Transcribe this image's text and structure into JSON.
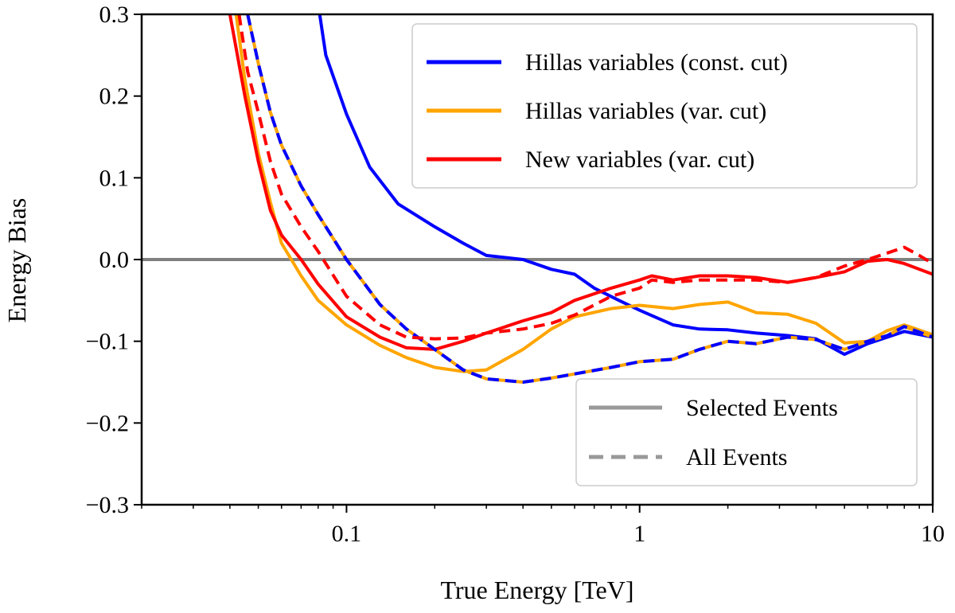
{
  "chart_data": {
    "type": "line",
    "xlabel": "True Energy [TeV]",
    "ylabel": "Energy Bias",
    "xscale": "log",
    "xlim": [
      0.02,
      10
    ],
    "ylim": [
      -0.3,
      0.3
    ],
    "xticks": [
      {
        "value": 0.1,
        "label": "0.1"
      },
      {
        "value": 1,
        "label": "1"
      },
      {
        "value": 10,
        "label": "10"
      }
    ],
    "yticks": [
      {
        "value": 0.3,
        "label": "0.3"
      },
      {
        "value": 0.2,
        "label": "0.2"
      },
      {
        "value": 0.1,
        "label": "0.1"
      },
      {
        "value": 0.0,
        "label": "0.0"
      },
      {
        "value": -0.1,
        "label": "−0.1"
      },
      {
        "value": -0.2,
        "label": "−0.2"
      },
      {
        "value": -0.3,
        "label": "−0.3"
      }
    ],
    "grid": false,
    "reference_line": {
      "y": 0.0,
      "color": "#808080"
    },
    "legend_series": {
      "position": "top-right",
      "entries": [
        {
          "label": "Hillas variables (const. cut)",
          "color": "#0000ff"
        },
        {
          "label": "Hillas variables (var. cut)",
          "color": "#ffa500"
        },
        {
          "label": "New variables (var. cut)",
          "color": "#ff0000"
        }
      ]
    },
    "legend_style": {
      "position": "lower-right",
      "entries": [
        {
          "label": "Selected Events",
          "linestyle": "solid",
          "color": "#999999"
        },
        {
          "label": "All Events",
          "linestyle": "dashed",
          "color": "#999999"
        }
      ]
    },
    "series": [
      {
        "name": "Hillas variables (const. cut)",
        "linestyle": "solid",
        "color": "#0000ff",
        "dash_color": null,
        "points": [
          [
            0.081,
            0.3
          ],
          [
            0.085,
            0.25
          ],
          [
            0.1,
            0.178
          ],
          [
            0.12,
            0.113
          ],
          [
            0.15,
            0.068
          ],
          [
            0.2,
            0.04
          ],
          [
            0.25,
            0.02
          ],
          [
            0.3,
            0.005
          ],
          [
            0.4,
            0.0
          ],
          [
            0.5,
            -0.012
          ],
          [
            0.6,
            -0.018
          ],
          [
            0.7,
            -0.035
          ],
          [
            0.85,
            -0.05
          ],
          [
            1.0,
            -0.062
          ],
          [
            1.3,
            -0.08
          ],
          [
            1.6,
            -0.085
          ],
          [
            2.0,
            -0.086
          ],
          [
            2.5,
            -0.09
          ],
          [
            3.2,
            -0.093
          ],
          [
            4.0,
            -0.097
          ],
          [
            5.0,
            -0.116
          ],
          [
            6.0,
            -0.103
          ],
          [
            7.0,
            -0.095
          ],
          [
            8.0,
            -0.088
          ],
          [
            10.0,
            -0.095
          ]
        ]
      },
      {
        "name": "Hillas variables (var. cut)",
        "linestyle": "solid",
        "color": "#ffa500",
        "dash_color": null,
        "points": [
          [
            0.042,
            0.3
          ],
          [
            0.045,
            0.22
          ],
          [
            0.05,
            0.13
          ],
          [
            0.055,
            0.07
          ],
          [
            0.06,
            0.02
          ],
          [
            0.07,
            -0.02
          ],
          [
            0.08,
            -0.05
          ],
          [
            0.1,
            -0.08
          ],
          [
            0.13,
            -0.105
          ],
          [
            0.16,
            -0.12
          ],
          [
            0.2,
            -0.132
          ],
          [
            0.25,
            -0.137
          ],
          [
            0.3,
            -0.135
          ],
          [
            0.4,
            -0.11
          ],
          [
            0.5,
            -0.085
          ],
          [
            0.6,
            -0.07
          ],
          [
            0.8,
            -0.06
          ],
          [
            1.0,
            -0.056
          ],
          [
            1.3,
            -0.06
          ],
          [
            1.6,
            -0.055
          ],
          [
            2.0,
            -0.052
          ],
          [
            2.5,
            -0.065
          ],
          [
            3.2,
            -0.067
          ],
          [
            4.0,
            -0.078
          ],
          [
            5.0,
            -0.102
          ],
          [
            6.0,
            -0.1
          ],
          [
            7.0,
            -0.087
          ],
          [
            8.0,
            -0.08
          ],
          [
            10.0,
            -0.092
          ]
        ]
      },
      {
        "name": "New variables (var. cut)",
        "linestyle": "solid",
        "color": "#ff0000",
        "dash_color": null,
        "points": [
          [
            0.04,
            0.3
          ],
          [
            0.045,
            0.2
          ],
          [
            0.05,
            0.12
          ],
          [
            0.055,
            0.06
          ],
          [
            0.06,
            0.03
          ],
          [
            0.07,
            0.0
          ],
          [
            0.08,
            -0.03
          ],
          [
            0.1,
            -0.07
          ],
          [
            0.13,
            -0.095
          ],
          [
            0.16,
            -0.108
          ],
          [
            0.2,
            -0.11
          ],
          [
            0.25,
            -0.1
          ],
          [
            0.3,
            -0.09
          ],
          [
            0.4,
            -0.075
          ],
          [
            0.5,
            -0.065
          ],
          [
            0.6,
            -0.05
          ],
          [
            0.8,
            -0.035
          ],
          [
            1.0,
            -0.025
          ],
          [
            1.1,
            -0.02
          ],
          [
            1.3,
            -0.025
          ],
          [
            1.6,
            -0.02
          ],
          [
            2.0,
            -0.02
          ],
          [
            2.5,
            -0.022
          ],
          [
            3.2,
            -0.028
          ],
          [
            4.0,
            -0.022
          ],
          [
            5.0,
            -0.015
          ],
          [
            6.0,
            -0.002
          ],
          [
            7.0,
            0.0
          ],
          [
            8.0,
            -0.005
          ],
          [
            10.0,
            -0.018
          ]
        ]
      },
      {
        "name": "Hillas variables (var. cut) – All Events",
        "linestyle": "dashed",
        "color": "#0000ff",
        "dash_color": "#ffa500",
        "points": [
          [
            0.046,
            0.3
          ],
          [
            0.05,
            0.24
          ],
          [
            0.055,
            0.18
          ],
          [
            0.06,
            0.14
          ],
          [
            0.07,
            0.09
          ],
          [
            0.08,
            0.055
          ],
          [
            0.1,
            0.0
          ],
          [
            0.13,
            -0.055
          ],
          [
            0.16,
            -0.085
          ],
          [
            0.2,
            -0.11
          ],
          [
            0.25,
            -0.135
          ],
          [
            0.3,
            -0.146
          ],
          [
            0.4,
            -0.15
          ],
          [
            0.5,
            -0.145
          ],
          [
            0.6,
            -0.14
          ],
          [
            0.8,
            -0.132
          ],
          [
            1.0,
            -0.125
          ],
          [
            1.3,
            -0.122
          ],
          [
            1.6,
            -0.11
          ],
          [
            2.0,
            -0.1
          ],
          [
            2.5,
            -0.103
          ],
          [
            3.2,
            -0.095
          ],
          [
            4.0,
            -0.098
          ],
          [
            5.0,
            -0.11
          ],
          [
            6.0,
            -0.1
          ],
          [
            7.0,
            -0.093
          ],
          [
            8.0,
            -0.082
          ],
          [
            10.0,
            -0.095
          ]
        ]
      },
      {
        "name": "New variables (var. cut) – All Events",
        "linestyle": "dashed",
        "color": "#ff0000",
        "dash_color": null,
        "points": [
          [
            0.043,
            0.3
          ],
          [
            0.046,
            0.23
          ],
          [
            0.05,
            0.18
          ],
          [
            0.055,
            0.12
          ],
          [
            0.06,
            0.08
          ],
          [
            0.07,
            0.04
          ],
          [
            0.08,
            0.01
          ],
          [
            0.1,
            -0.045
          ],
          [
            0.13,
            -0.08
          ],
          [
            0.16,
            -0.095
          ],
          [
            0.2,
            -0.097
          ],
          [
            0.25,
            -0.096
          ],
          [
            0.3,
            -0.09
          ],
          [
            0.4,
            -0.085
          ],
          [
            0.5,
            -0.078
          ],
          [
            0.6,
            -0.068
          ],
          [
            0.8,
            -0.045
          ],
          [
            1.0,
            -0.035
          ],
          [
            1.1,
            -0.025
          ],
          [
            1.3,
            -0.028
          ],
          [
            1.6,
            -0.025
          ],
          [
            2.0,
            -0.025
          ],
          [
            2.5,
            -0.025
          ],
          [
            3.2,
            -0.028
          ],
          [
            4.0,
            -0.022
          ],
          [
            5.0,
            -0.008
          ],
          [
            6.0,
            0.0
          ],
          [
            7.0,
            0.008
          ],
          [
            8.0,
            0.015
          ],
          [
            9.0,
            0.005
          ],
          [
            10.0,
            -0.005
          ]
        ]
      }
    ]
  }
}
